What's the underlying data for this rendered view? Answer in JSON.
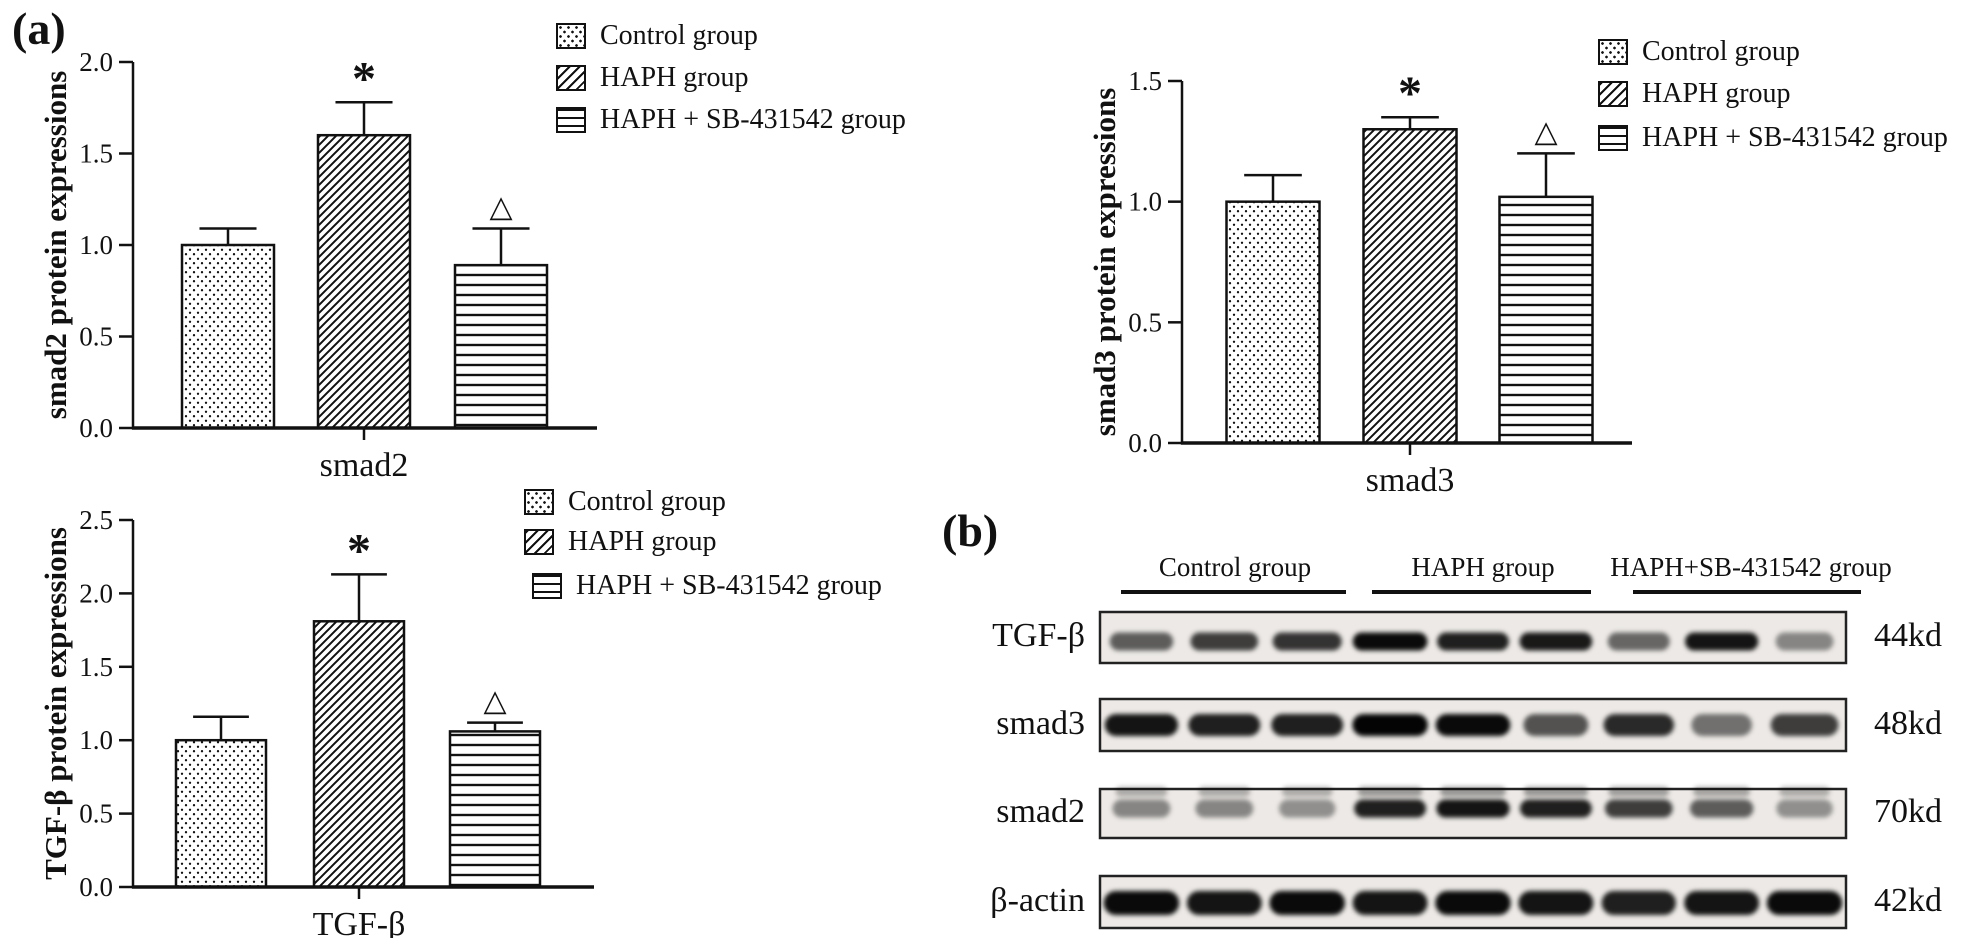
{
  "panels": {
    "a_label": "(a)",
    "b_label": "(b)"
  },
  "legend": {
    "items": [
      {
        "name": "control",
        "label": "Control group",
        "pattern": "dots"
      },
      {
        "name": "haph",
        "label": "HAPH group",
        "pattern": "diagonal"
      },
      {
        "name": "haph-sb",
        "label": "HAPH + SB-431542 group",
        "pattern": "hlines"
      }
    ]
  },
  "chart_data": [
    {
      "type": "bar",
      "id": "smad2",
      "title": "",
      "ylabel": "smad2 protein expressions",
      "xlabel": "smad2",
      "ylim": [
        0,
        2.0
      ],
      "yticks": [
        "0.0",
        "0.5",
        "1.0",
        "1.5",
        "2.0"
      ],
      "categories": [
        "Control group",
        "HAPH group",
        "HAPH + SB-431542 group"
      ],
      "values": [
        1.0,
        1.6,
        0.89
      ],
      "errors": [
        0.09,
        0.18,
        0.2
      ],
      "annotations": [
        "",
        "*",
        "△"
      ],
      "grid": false,
      "legend_position": "upper right"
    },
    {
      "type": "bar",
      "id": "smad3",
      "title": "",
      "ylabel": "smad3 protein expressions",
      "xlabel": "smad3",
      "ylim": [
        0,
        1.5
      ],
      "yticks": [
        "0.0",
        "0.5",
        "1.0",
        "1.5"
      ],
      "categories": [
        "Control group",
        "HAPH group",
        "HAPH + SB-431542 group"
      ],
      "values": [
        1.0,
        1.3,
        1.02
      ],
      "errors": [
        0.11,
        0.05,
        0.18
      ],
      "annotations": [
        "",
        "*",
        "△"
      ],
      "grid": false,
      "legend_position": "upper right"
    },
    {
      "type": "bar",
      "id": "tgf-beta",
      "title": "",
      "ylabel": "TGF-β protein expressions",
      "xlabel": "TGF-β",
      "ylim": [
        0,
        2.5
      ],
      "yticks": [
        "0.0",
        "0.5",
        "1.0",
        "1.5",
        "2.0",
        "2.5"
      ],
      "categories": [
        "Control group",
        "HAPH group",
        "HAPH + SB-431542 group"
      ],
      "values": [
        1.0,
        1.81,
        1.06
      ],
      "errors": [
        0.16,
        0.32,
        0.06
      ],
      "annotations": [
        "",
        "*",
        "△"
      ],
      "grid": false,
      "legend_position": "upper right"
    }
  ],
  "blot_panel": {
    "group_headers": [
      "Control group",
      "HAPH group",
      "HAPH+SB-431542 group"
    ],
    "lanes_per_group": 3,
    "rows": [
      {
        "protein": "TGF-β",
        "weight": "44kd",
        "doublet": false,
        "band_intensities": [
          0.55,
          0.7,
          0.75,
          0.95,
          0.85,
          0.88,
          0.5,
          0.9,
          0.35
        ]
      },
      {
        "protein": "smad3",
        "weight": "48kd",
        "doublet": false,
        "band_intensities": [
          0.9,
          0.85,
          0.85,
          0.98,
          0.95,
          0.6,
          0.8,
          0.45,
          0.7
        ]
      },
      {
        "protein": "smad2",
        "weight": "70kd",
        "doublet": true,
        "band_intensities": [
          0.35,
          0.35,
          0.3,
          0.85,
          0.9,
          0.85,
          0.7,
          0.55,
          0.3
        ]
      },
      {
        "protein": "β-actin",
        "weight": "42kd",
        "doublet": false,
        "band_intensities": [
          0.95,
          0.9,
          0.95,
          0.9,
          0.95,
          0.9,
          0.85,
          0.9,
          0.95
        ]
      }
    ]
  },
  "colors": {
    "ink": "#111111",
    "background": "#ffffff",
    "blot_bg": "#ece9e6"
  }
}
